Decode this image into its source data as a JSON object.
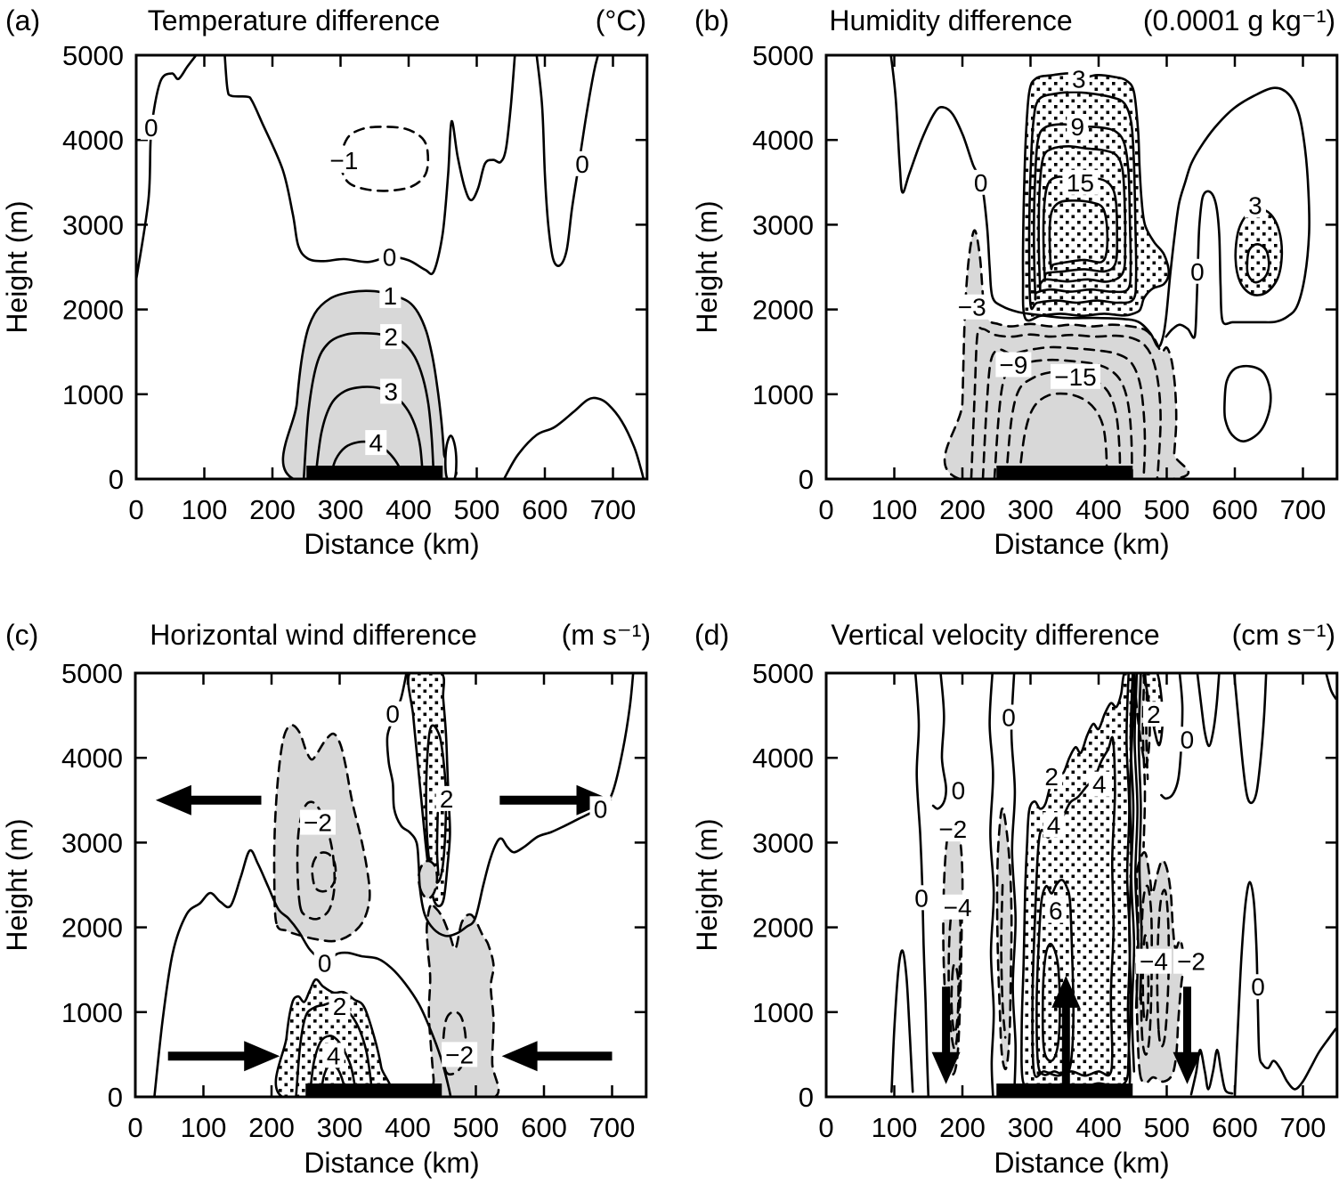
{
  "figure": {
    "description": "Four-panel contour cross-sections of model differences versus distance and height",
    "ink_color": "#000000",
    "shade_gray": "#d8d8d8",
    "negative_contour_style": "dashed",
    "positive_shading": "stippled dots",
    "negative_shading": "light gray fill"
  },
  "chart_data": [
    {
      "type": "contour",
      "panel": "(a)",
      "title": "Temperature difference",
      "units": "(°C)",
      "xlabel": "Distance (km)",
      "ylabel": "Height (m)",
      "xlim": [
        0,
        750
      ],
      "ylim": [
        0,
        5000
      ],
      "x_ticks": [
        0,
        100,
        200,
        300,
        400,
        500,
        600,
        700
      ],
      "y_ticks": [
        0,
        1000,
        2000,
        3000,
        4000,
        5000
      ],
      "contour_interval": 1,
      "levels_labeled": [
        "-1",
        "0",
        "1",
        "2",
        "3",
        "4"
      ],
      "shading_note": "gray where difference >= 1",
      "surface_bar_km": [
        250,
        450
      ],
      "arrows": [],
      "contour_labels": [
        {
          "v": "0",
          "km": 22,
          "m": 4150
        },
        {
          "v": "−1",
          "km": 305,
          "m": 3760
        },
        {
          "v": "0",
          "km": 372,
          "m": 2620
        },
        {
          "v": "0",
          "km": 655,
          "m": 3720
        },
        {
          "v": "1",
          "km": 373,
          "m": 2165
        },
        {
          "v": "2",
          "km": 374,
          "m": 1680
        },
        {
          "v": "3",
          "km": 374,
          "m": 1035
        },
        {
          "v": "4",
          "km": 352,
          "m": 430
        }
      ]
    },
    {
      "type": "contour",
      "panel": "(b)",
      "title": "Humidity difference",
      "units": "(0.0001 g kg⁻¹)",
      "xlabel": "Distance (km)",
      "ylabel": "Height (m)",
      "xlim": [
        0,
        750
      ],
      "ylim": [
        0,
        5000
      ],
      "x_ticks": [
        0,
        100,
        200,
        300,
        400,
        500,
        600,
        700
      ],
      "y_ticks": [
        0,
        1000,
        2000,
        3000,
        4000,
        5000
      ],
      "contour_interval": 3,
      "levels_labeled": [
        "-15",
        "-9",
        "-3",
        "0",
        "3",
        "9",
        "15"
      ],
      "shading_note": "stippled where >= 3, gray where <= -3",
      "surface_bar_km": [
        250,
        450
      ],
      "arrows": [],
      "contour_labels": [
        {
          "v": "0",
          "km": 227,
          "m": 3500
        },
        {
          "v": "3",
          "km": 371,
          "m": 4720
        },
        {
          "v": "9",
          "km": 369,
          "m": 4160
        },
        {
          "v": "15",
          "km": 373,
          "m": 3500
        },
        {
          "v": "0",
          "km": 545,
          "m": 2450
        },
        {
          "v": "3",
          "km": 630,
          "m": 3230
        },
        {
          "v": "−3",
          "km": 214,
          "m": 2030
        },
        {
          "v": "−9",
          "km": 275,
          "m": 1350
        },
        {
          "v": "−15",
          "km": 366,
          "m": 1210
        }
      ]
    },
    {
      "type": "contour",
      "panel": "(c)",
      "title": "Horizontal wind difference",
      "units": "(m s⁻¹)",
      "xlabel": "Distance (km)",
      "ylabel": "Height (m)",
      "xlim": [
        0,
        750
      ],
      "ylim": [
        0,
        5000
      ],
      "x_ticks": [
        0,
        100,
        200,
        300,
        400,
        500,
        600,
        700
      ],
      "y_ticks": [
        0,
        1000,
        2000,
        3000,
        4000,
        5000
      ],
      "contour_interval": 2,
      "levels_labeled": [
        "-2",
        "0",
        "2",
        "4"
      ],
      "shading_note": "stippled where >= 2, gray where <= -2",
      "surface_bar_km": [
        250,
        450
      ],
      "arrows": [
        {
          "dir": "left",
          "m": 3500,
          "km_tail": 185,
          "km_tip": 30
        },
        {
          "dir": "right",
          "m": 3500,
          "km_tail": 535,
          "km_tip": 700
        },
        {
          "dir": "right",
          "m": 480,
          "km_tail": 48,
          "km_tip": 212
        },
        {
          "dir": "left",
          "m": 480,
          "km_tail": 700,
          "km_tip": 538
        }
      ],
      "contour_labels": [
        {
          "v": "0",
          "km": 378,
          "m": 4520
        },
        {
          "v": "−2",
          "km": 268,
          "m": 3240
        },
        {
          "v": "2",
          "km": 457,
          "m": 3520
        },
        {
          "v": "0",
          "km": 278,
          "m": 1580
        },
        {
          "v": "0",
          "km": 683,
          "m": 3400
        },
        {
          "v": "2",
          "km": 300,
          "m": 1070
        },
        {
          "v": "4",
          "km": 291,
          "m": 490
        },
        {
          "v": "−2",
          "km": 476,
          "m": 500
        }
      ]
    },
    {
      "type": "contour",
      "panel": "(d)",
      "title": "Vertical velocity difference",
      "units": "(cm s⁻¹)",
      "xlabel": "Distance (km)",
      "ylabel": "Height (m)",
      "xlim": [
        0,
        750
      ],
      "ylim": [
        0,
        5000
      ],
      "x_ticks": [
        0,
        100,
        200,
        300,
        400,
        500,
        600,
        700
      ],
      "y_ticks": [
        0,
        1000,
        2000,
        3000,
        4000,
        5000
      ],
      "contour_interval": 2,
      "levels_labeled": [
        "-4",
        "-2",
        "0",
        "2",
        "4",
        "6"
      ],
      "shading_note": "stippled where >= 2, gray where <= -2",
      "surface_bar_km": [
        250,
        450
      ],
      "arrows": [
        {
          "dir": "down",
          "km": 176,
          "m_tail": 1300,
          "m_tip": 150
        },
        {
          "dir": "up",
          "km": 352,
          "m_tail": 80,
          "m_tip": 1430
        },
        {
          "dir": "down",
          "km": 530,
          "m_tail": 1300,
          "m_tip": 150
        }
      ],
      "contour_labels": [
        {
          "v": "0",
          "km": 140,
          "m": 2350
        },
        {
          "v": "0",
          "km": 194,
          "m": 3620
        },
        {
          "v": "0",
          "km": 268,
          "m": 4480
        },
        {
          "v": "−2",
          "km": 186,
          "m": 3160
        },
        {
          "v": "−4",
          "km": 193,
          "m": 2240
        },
        {
          "v": "2",
          "km": 331,
          "m": 3780
        },
        {
          "v": "4",
          "km": 334,
          "m": 3210
        },
        {
          "v": "4",
          "km": 401,
          "m": 3690
        },
        {
          "v": "6",
          "km": 337,
          "m": 2200
        },
        {
          "v": "2",
          "km": 481,
          "m": 4515
        },
        {
          "v": "0",
          "km": 530,
          "m": 4220
        },
        {
          "v": "−4",
          "km": 481,
          "m": 1600
        },
        {
          "v": "−2",
          "km": 536,
          "m": 1600
        },
        {
          "v": "0",
          "km": 634,
          "m": 1300
        }
      ]
    }
  ]
}
